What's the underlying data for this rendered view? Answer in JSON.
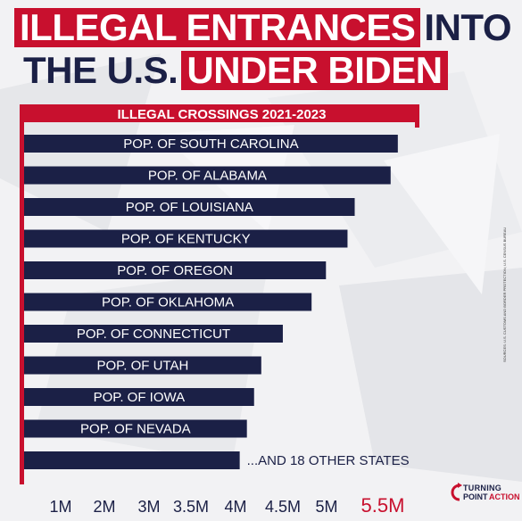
{
  "headline": {
    "line1_red": "ILLEGAL ENTRANCES",
    "line1_plain": "INTO",
    "line2_plain": "THE U.S.",
    "line2_red": "UNDER BIDEN"
  },
  "colors": {
    "red": "#c8102e",
    "navy": "#1b2046",
    "white": "#ffffff"
  },
  "footnote": "SOURCES: U.S. CUSTOMS AND BORDER PROTECTION; U.S. CENSUS BUREAU",
  "logo": {
    "line1": "TURNING",
    "line2": "POINT",
    "line3": "ACTION",
    "icon": "turning-point-arc-icon"
  },
  "chart_data": {
    "type": "bar",
    "orientation": "horizontal",
    "title": "ILLEGAL CROSSINGS 2021-2023",
    "categories": [
      "POP. OF SOUTH CAROLINA",
      "POP. OF ALABAMA",
      "POP. OF LOUISIANA",
      "POP. OF KENTUCKY",
      "POP. OF OREGON",
      "POP. OF OKLAHOMA",
      "POP. OF CONNECTICUT",
      "POP. OF UTAH",
      "POP. OF IOWA",
      "POP. OF NEVADA",
      "...AND 18 OTHER STATES"
    ],
    "values": [
      5.2,
      5.1,
      4.6,
      4.5,
      4.2,
      4.0,
      3.6,
      3.3,
      3.2,
      3.1,
      3.0
    ],
    "highlight_value": 5.5,
    "x_ticks": [
      "1M",
      "2M",
      "3M",
      "3.5M",
      "4M",
      "4.5M",
      "5M",
      "5.5M"
    ],
    "highlight_tick": "5.5M"
  }
}
